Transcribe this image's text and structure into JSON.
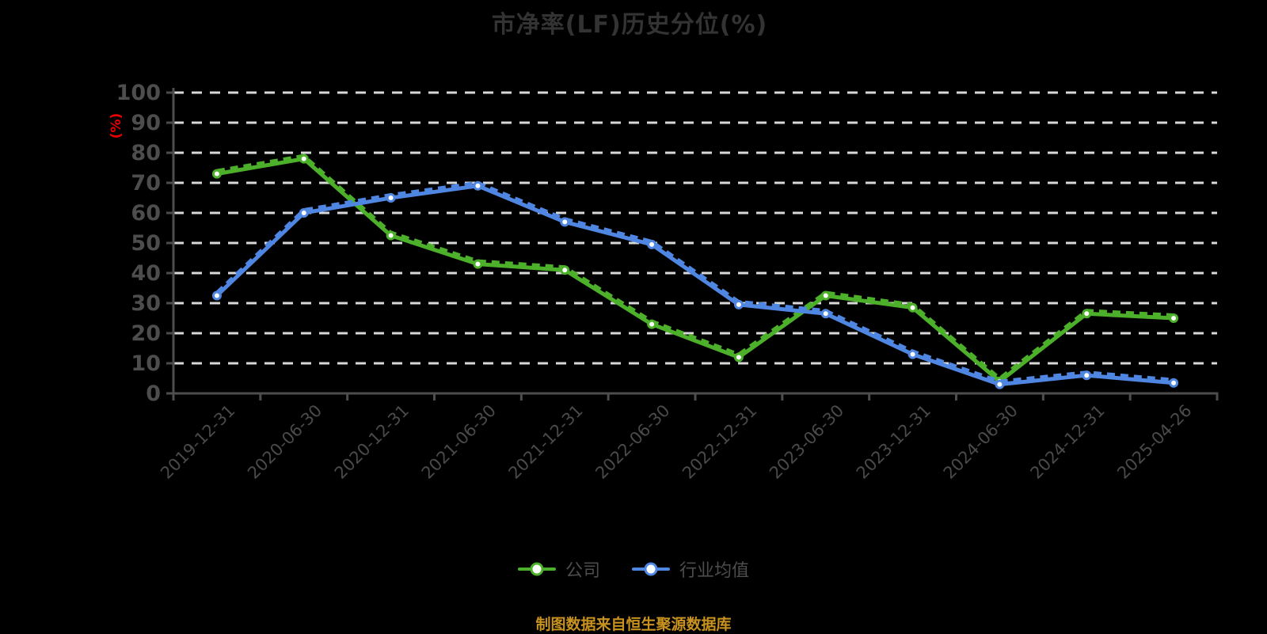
{
  "title": "市净率(LF)历史分位(%)",
  "source_note": "制图数据来自恒生聚源数据库",
  "colors": {
    "background": "#000000",
    "title_text": "#333333",
    "axis": "#4d4d4d",
    "tick_label": "#4a4a4a",
    "gridline": "#d8d8d8",
    "ylabel_red": "#ee0000",
    "legend_text": "#4d4d4d",
    "source_text": "#c8921e",
    "company_green": "#4db02a",
    "industry_blue": "#4e86e2"
  },
  "chart_data": {
    "type": "line",
    "title": "市净率(LF)历史分位(%)",
    "xlabel": "",
    "ylabel": "(%)",
    "ylim": [
      0,
      100
    ],
    "y_ticks": [
      0,
      10,
      20,
      30,
      40,
      50,
      60,
      70,
      80,
      90,
      100
    ],
    "grid": "horizontal-dashed-white",
    "legend_position": "bottom",
    "marker": "white-filled-circle",
    "categories": [
      "2019-12-31",
      "2020-06-30",
      "2020-12-31",
      "2021-06-30",
      "2021-12-31",
      "2022-06-30",
      "2022-12-31",
      "2023-06-30",
      "2023-12-31",
      "2024-06-30",
      "2024-12-31",
      "2025-04-26"
    ],
    "series": [
      {
        "name": "公司",
        "color": "#4db02a",
        "values": [
          73,
          78,
          52.5,
          43,
          41,
          23,
          12,
          32.5,
          28.5,
          4,
          26.5,
          25
        ]
      },
      {
        "name": "行业均值",
        "color": "#4e86e2",
        "values": [
          32.5,
          60,
          65,
          69,
          57,
          49.5,
          29.5,
          26.5,
          13,
          3,
          6,
          3.5
        ]
      }
    ]
  }
}
